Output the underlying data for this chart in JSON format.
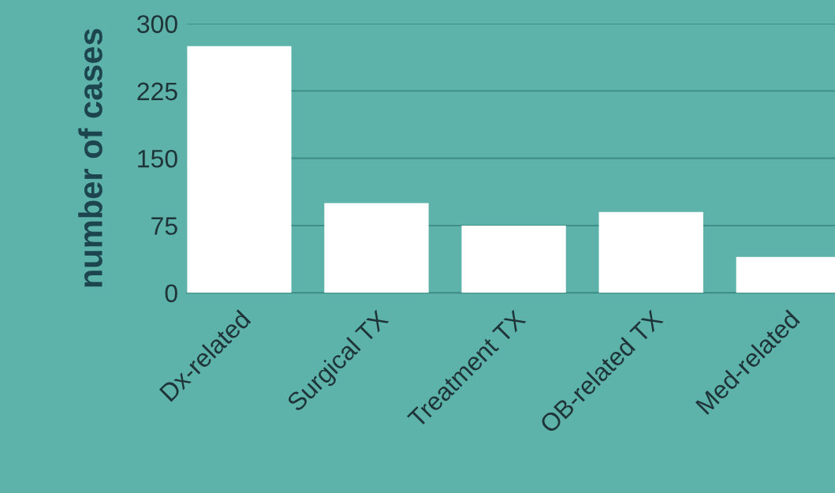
{
  "chart_data": {
    "type": "bar",
    "ylabel": "number of cases",
    "categories": [
      "Dx-related",
      "Surgical TX",
      "Treatment TX",
      "OB-related TX",
      "Med-related"
    ],
    "values": [
      275,
      100,
      75,
      90,
      40
    ],
    "color": "#ffffff",
    "ylim": [
      0,
      300
    ],
    "yticks": [
      0,
      75,
      150,
      225,
      300
    ],
    "grid": "y"
  }
}
